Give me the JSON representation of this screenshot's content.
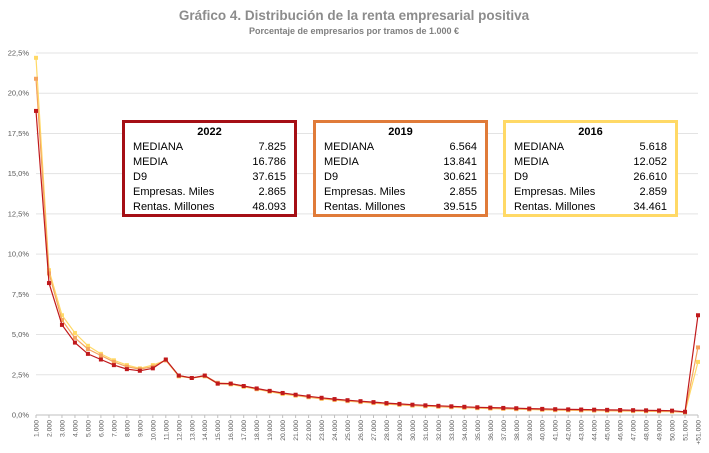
{
  "chart_data": {
    "type": "line",
    "title": "Gráfico 4. Distribución de la renta empresarial positiva",
    "subtitle": "Porcentaje de empresarios por tramos de 1.000 €",
    "xlabel": "",
    "ylabel": "",
    "ylim": [
      0,
      22.5
    ],
    "y_ticks": [
      "0,0%",
      "2,5%",
      "5,0%",
      "7,5%",
      "10,0%",
      "12,5%",
      "15,0%",
      "17,5%",
      "20,0%",
      "22,5%"
    ],
    "categories": [
      "1.000",
      "2.000",
      "3.000",
      "4.000",
      "5.000",
      "6.000",
      "7.000",
      "8.000",
      "9.000",
      "10.000",
      "11.000",
      "12.000",
      "13.000",
      "14.000",
      "15.000",
      "16.000",
      "17.000",
      "18.000",
      "19.000",
      "20.000",
      "21.000",
      "22.000",
      "23.000",
      "24.000",
      "25.000",
      "26.000",
      "27.000",
      "28.000",
      "29.000",
      "30.000",
      "31.000",
      "32.000",
      "33.000",
      "34.000",
      "35.000",
      "36.000",
      "37.000",
      "38.000",
      "39.000",
      "40.000",
      "41.000",
      "42.000",
      "43.000",
      "44.000",
      "45.000",
      "46.000",
      "47.000",
      "48.000",
      "49.000",
      "50.000",
      "51.000",
      "+51.000"
    ],
    "series": [
      {
        "name": "2016",
        "color": "#ffd966",
        "values": [
          22.2,
          9.0,
          6.2,
          5.1,
          4.3,
          3.8,
          3.4,
          3.1,
          2.9,
          3.1,
          3.4,
          2.4,
          2.3,
          2.4,
          1.95,
          1.9,
          1.75,
          1.6,
          1.45,
          1.3,
          1.2,
          1.1,
          1.0,
          0.93,
          0.86,
          0.8,
          0.74,
          0.68,
          0.63,
          0.58,
          0.54,
          0.51,
          0.48,
          0.45,
          0.42,
          0.4,
          0.38,
          0.36,
          0.34,
          0.32,
          0.3,
          0.29,
          0.28,
          0.27,
          0.26,
          0.25,
          0.24,
          0.23,
          0.22,
          0.21,
          0.16,
          3.3
        ]
      },
      {
        "name": "2019",
        "color": "#f4a460",
        "values": [
          20.9,
          8.8,
          5.9,
          4.8,
          4.1,
          3.7,
          3.3,
          3.0,
          2.85,
          3.0,
          3.4,
          2.45,
          2.3,
          2.45,
          2.0,
          1.95,
          1.8,
          1.62,
          1.48,
          1.35,
          1.23,
          1.12,
          1.03,
          0.95,
          0.88,
          0.82,
          0.76,
          0.7,
          0.65,
          0.6,
          0.56,
          0.53,
          0.5,
          0.47,
          0.44,
          0.42,
          0.4,
          0.38,
          0.36,
          0.34,
          0.32,
          0.31,
          0.3,
          0.29,
          0.28,
          0.27,
          0.26,
          0.25,
          0.24,
          0.23,
          0.17,
          4.2
        ]
      },
      {
        "name": "2022",
        "color": "#c0191c",
        "values": [
          18.9,
          8.2,
          5.6,
          4.5,
          3.8,
          3.45,
          3.1,
          2.85,
          2.75,
          2.9,
          3.45,
          2.45,
          2.3,
          2.45,
          1.95,
          1.95,
          1.8,
          1.65,
          1.5,
          1.37,
          1.26,
          1.16,
          1.07,
          0.99,
          0.92,
          0.86,
          0.8,
          0.74,
          0.69,
          0.64,
          0.6,
          0.57,
          0.54,
          0.51,
          0.48,
          0.46,
          0.44,
          0.42,
          0.4,
          0.38,
          0.36,
          0.35,
          0.34,
          0.33,
          0.32,
          0.31,
          0.3,
          0.29,
          0.28,
          0.27,
          0.2,
          6.2
        ]
      }
    ]
  },
  "boxes": [
    {
      "year": "2022",
      "color": "#a50f15",
      "rows": [
        {
          "label": "MEDIANA",
          "value": "7.825"
        },
        {
          "label": "MEDIA",
          "value": "16.786"
        },
        {
          "label": "D9",
          "value": "37.615"
        },
        {
          "label": "Empresas. Miles",
          "value": "2.865"
        },
        {
          "label": "Rentas. Millones",
          "value": "48.093"
        }
      ]
    },
    {
      "year": "2019",
      "color": "#e07b39",
      "rows": [
        {
          "label": "MEDIANA",
          "value": "6.564"
        },
        {
          "label": "MEDIA",
          "value": "13.841"
        },
        {
          "label": "D9",
          "value": "30.621"
        },
        {
          "label": "Empresas. Miles",
          "value": "2.855"
        },
        {
          "label": "Rentas. Millones",
          "value": "39.515"
        }
      ]
    },
    {
      "year": "2016",
      "color": "#ffd966",
      "rows": [
        {
          "label": "MEDIANA",
          "value": "5.618"
        },
        {
          "label": "MEDIA",
          "value": "12.052"
        },
        {
          "label": "D9",
          "value": "26.610"
        },
        {
          "label": "Empresas. Miles",
          "value": "2.859"
        },
        {
          "label": "Rentas. Millones",
          "value": "34.461"
        }
      ]
    }
  ]
}
